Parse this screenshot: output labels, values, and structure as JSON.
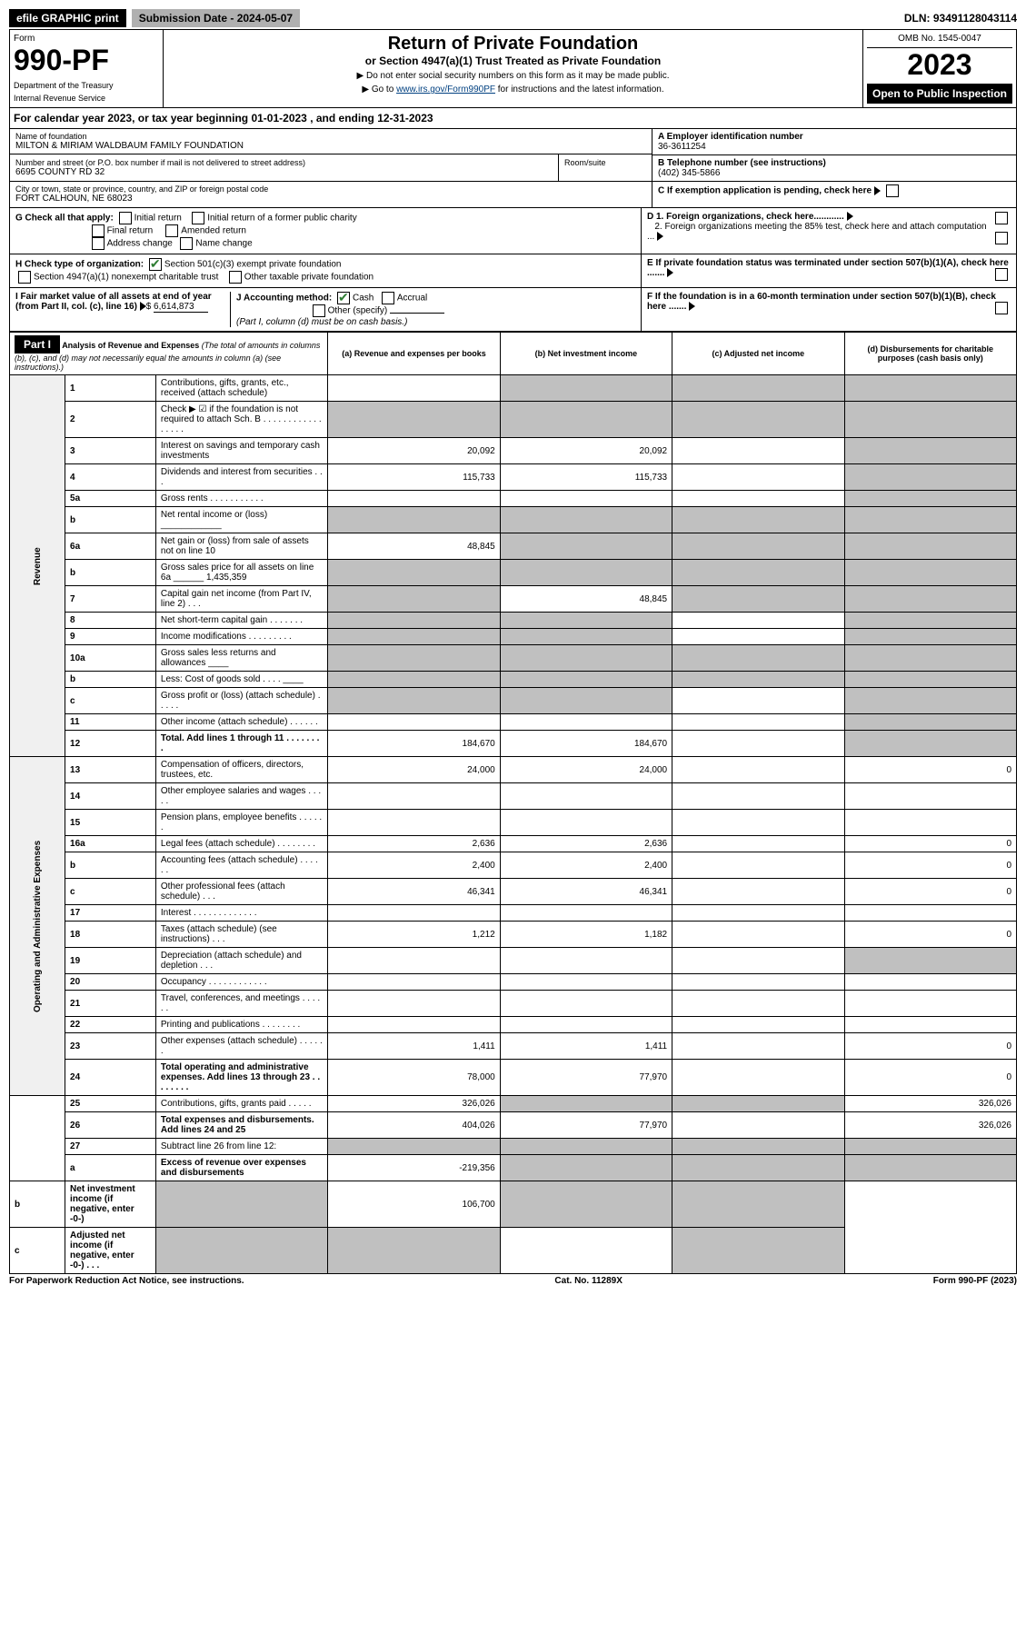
{
  "topbar": {
    "efile": "efile GRAPHIC print",
    "submission": "Submission Date - 2024-05-07",
    "dln": "DLN: 93491128043114"
  },
  "header": {
    "form_word": "Form",
    "form_no": "990-PF",
    "dept": "Department of the Treasury",
    "irs": "Internal Revenue Service",
    "title": "Return of Private Foundation",
    "subtitle": "or Section 4947(a)(1) Trust Treated as Private Foundation",
    "instr1": "▶ Do not enter social security numbers on this form as it may be made public.",
    "instr2_pre": "▶ Go to ",
    "instr2_link": "www.irs.gov/Form990PF",
    "instr2_post": " for instructions and the latest information.",
    "omb": "OMB No. 1545-0047",
    "year": "2023",
    "open": "Open to Public Inspection"
  },
  "calyear": {
    "pre": "For calendar year 2023, or tax year beginning ",
    "begin": "01-01-2023",
    "mid": " , and ending ",
    "end": "12-31-2023"
  },
  "entity": {
    "name_lbl": "Name of foundation",
    "name": "MILTON & MIRIAM WALDBAUM FAMILY FOUNDATION",
    "addr_lbl": "Number and street (or P.O. box number if mail is not delivered to street address)",
    "addr": "6695 COUNTY RD 32",
    "room_lbl": "Room/suite",
    "city_lbl": "City or town, state or province, country, and ZIP or foreign postal code",
    "city": "FORT CALHOUN, NE  68023",
    "a_lbl": "A Employer identification number",
    "a_val": "36-3611254",
    "b_lbl": "B Telephone number (see instructions)",
    "b_val": "(402) 345-5866",
    "c_lbl": "C If exemption application is pending, check here",
    "d1_lbl": "D 1. Foreign organizations, check here............",
    "d2_lbl": "2. Foreign organizations meeting the 85% test, check here and attach computation ...",
    "e_lbl": "E If private foundation status was terminated under section 507(b)(1)(A), check here .......",
    "f_lbl": "F If the foundation is in a 60-month termination under section 507(b)(1)(B), check here .......",
    "g_lbl": "G Check all that apply:",
    "g_initial": "Initial return",
    "g_initial_former": "Initial return of a former public charity",
    "g_final": "Final return",
    "g_amended": "Amended return",
    "g_address": "Address change",
    "g_name": "Name change",
    "h_lbl": "H Check type of organization:",
    "h_501c3": "Section 501(c)(3) exempt private foundation",
    "h_4947": "Section 4947(a)(1) nonexempt charitable trust",
    "h_other": "Other taxable private foundation",
    "i_lbl": "I Fair market value of all assets at end of year (from Part II, col. (c), line 16)",
    "i_val": "6,614,873",
    "j_lbl": "J Accounting method:",
    "j_cash": "Cash",
    "j_accrual": "Accrual",
    "j_other": "Other (specify)",
    "j_note": "(Part I, column (d) must be on cash basis.)"
  },
  "part1": {
    "label": "Part I",
    "title": "Analysis of Revenue and Expenses",
    "title_note": " (The total of amounts in columns (b), (c), and (d) may not necessarily equal the amounts in column (a) (see instructions).)",
    "col_a": "(a) Revenue and expenses per books",
    "col_b": "(b) Net investment income",
    "col_c": "(c) Adjusted net income",
    "col_d": "(d) Disbursements for charitable purposes (cash basis only)",
    "revenue_lbl": "Revenue",
    "expenses_lbl": "Operating and Administrative Expenses"
  },
  "rows": [
    {
      "n": "1",
      "t": "Contributions, gifts, grants, etc., received (attach schedule)",
      "a": "",
      "b": "",
      "c": "",
      "d": "",
      "sb": true,
      "sc": true,
      "sd": true
    },
    {
      "n": "2",
      "t": "Check ▶ ☑ if the foundation is not required to attach Sch. B   . . . . . . . . . . . . . . . . .",
      "a": "",
      "b": "",
      "c": "",
      "d": "",
      "sa": true,
      "sb": true,
      "sc": true,
      "sd": true
    },
    {
      "n": "3",
      "t": "Interest on savings and temporary cash investments",
      "a": "20,092",
      "b": "20,092",
      "c": "",
      "d": "",
      "sd": true
    },
    {
      "n": "4",
      "t": "Dividends and interest from securities   .  .  .",
      "a": "115,733",
      "b": "115,733",
      "c": "",
      "d": "",
      "sd": true
    },
    {
      "n": "5a",
      "t": "Gross rents    .  .  .  .  .  .  .  .  .  .  .",
      "a": "",
      "b": "",
      "c": "",
      "d": "",
      "sd": true
    },
    {
      "n": "b",
      "t": "Net rental income or (loss)  ____________",
      "a": "",
      "b": "",
      "c": "",
      "d": "",
      "sa": true,
      "sb": true,
      "sc": true,
      "sd": true
    },
    {
      "n": "6a",
      "t": "Net gain or (loss) from sale of assets not on line 10",
      "a": "48,845",
      "b": "",
      "c": "",
      "d": "",
      "sb": true,
      "sc": true,
      "sd": true
    },
    {
      "n": "b",
      "t": "Gross sales price for all assets on line 6a ______ 1,435,359",
      "a": "",
      "b": "",
      "c": "",
      "d": "",
      "sa": true,
      "sb": true,
      "sc": true,
      "sd": true
    },
    {
      "n": "7",
      "t": "Capital gain net income (from Part IV, line 2)   .  .  .",
      "a": "",
      "b": "48,845",
      "c": "",
      "d": "",
      "sa": true,
      "sc": true,
      "sd": true
    },
    {
      "n": "8",
      "t": "Net short-term capital gain   .  .  .  .  .  .  .",
      "a": "",
      "b": "",
      "c": "",
      "d": "",
      "sa": true,
      "sb": true,
      "sd": true
    },
    {
      "n": "9",
      "t": "Income modifications  .  .  .  .  .  .  .  .  .",
      "a": "",
      "b": "",
      "c": "",
      "d": "",
      "sa": true,
      "sb": true,
      "sd": true
    },
    {
      "n": "10a",
      "t": "Gross sales less returns and allowances  ____",
      "a": "",
      "b": "",
      "c": "",
      "d": "",
      "sa": true,
      "sb": true,
      "sc": true,
      "sd": true
    },
    {
      "n": "b",
      "t": "Less: Cost of goods sold   .  .  .  .  ____",
      "a": "",
      "b": "",
      "c": "",
      "d": "",
      "sa": true,
      "sb": true,
      "sc": true,
      "sd": true
    },
    {
      "n": "c",
      "t": "Gross profit or (loss) (attach schedule)   .  .  .  .  .",
      "a": "",
      "b": "",
      "c": "",
      "d": "",
      "sa": true,
      "sb": true,
      "sd": true
    },
    {
      "n": "11",
      "t": "Other income (attach schedule)   .  .  .  .  .  .",
      "a": "",
      "b": "",
      "c": "",
      "d": "",
      "sd": true
    },
    {
      "n": "12",
      "t": "Total. Add lines 1 through 11   . . . . . . . .",
      "a": "184,670",
      "b": "184,670",
      "c": "",
      "d": "",
      "bold": true,
      "sd": true
    },
    {
      "n": "13",
      "t": "Compensation of officers, directors, trustees, etc.",
      "a": "24,000",
      "b": "24,000",
      "c": "",
      "d": "0"
    },
    {
      "n": "14",
      "t": "Other employee salaries and wages   .  .  .  .  .",
      "a": "",
      "b": "",
      "c": "",
      "d": ""
    },
    {
      "n": "15",
      "t": "Pension plans, employee benefits  .  .  .  .  .  .",
      "a": "",
      "b": "",
      "c": "",
      "d": ""
    },
    {
      "n": "16a",
      "t": "Legal fees (attach schedule)  .  .  .  .  .  .  .  .",
      "a": "2,636",
      "b": "2,636",
      "c": "",
      "d": "0"
    },
    {
      "n": "b",
      "t": "Accounting fees (attach schedule)  .  .  .  .  .  .",
      "a": "2,400",
      "b": "2,400",
      "c": "",
      "d": "0"
    },
    {
      "n": "c",
      "t": "Other professional fees (attach schedule)   .  .  .",
      "a": "46,341",
      "b": "46,341",
      "c": "",
      "d": "0"
    },
    {
      "n": "17",
      "t": "Interest  .  .  .  .  .  .  .  .  .  .  .  .  .",
      "a": "",
      "b": "",
      "c": "",
      "d": ""
    },
    {
      "n": "18",
      "t": "Taxes (attach schedule) (see instructions)   .  .  .",
      "a": "1,212",
      "b": "1,182",
      "c": "",
      "d": "0"
    },
    {
      "n": "19",
      "t": "Depreciation (attach schedule) and depletion   .  .  .",
      "a": "",
      "b": "",
      "c": "",
      "d": "",
      "sd": true
    },
    {
      "n": "20",
      "t": "Occupancy  .  .  .  .  .  .  .  .  .  .  .  .",
      "a": "",
      "b": "",
      "c": "",
      "d": ""
    },
    {
      "n": "21",
      "t": "Travel, conferences, and meetings  .  .  .  .  .  .",
      "a": "",
      "b": "",
      "c": "",
      "d": ""
    },
    {
      "n": "22",
      "t": "Printing and publications  .  .  .  .  .  .  .  .",
      "a": "",
      "b": "",
      "c": "",
      "d": ""
    },
    {
      "n": "23",
      "t": "Other expenses (attach schedule)  .  .  .  .  .  .",
      "a": "1,411",
      "b": "1,411",
      "c": "",
      "d": "0"
    },
    {
      "n": "24",
      "t": "Total operating and administrative expenses. Add lines 13 through 23   .  .  .  .  .  .  .  .",
      "a": "78,000",
      "b": "77,970",
      "c": "",
      "d": "0",
      "bold": true
    },
    {
      "n": "25",
      "t": "Contributions, gifts, grants paid   .  .  .  .  .",
      "a": "326,026",
      "b": "",
      "c": "",
      "d": "326,026",
      "sb": true,
      "sc": true
    },
    {
      "n": "26",
      "t": "Total expenses and disbursements. Add lines 24 and 25",
      "a": "404,026",
      "b": "77,970",
      "c": "",
      "d": "326,026",
      "bold": true
    },
    {
      "n": "27",
      "t": "Subtract line 26 from line 12:",
      "a": "",
      "b": "",
      "c": "",
      "d": "",
      "sa": true,
      "sb": true,
      "sc": true,
      "sd": true
    },
    {
      "n": "a",
      "t": "Excess of revenue over expenses and disbursements",
      "a": "-219,356",
      "b": "",
      "c": "",
      "d": "",
      "bold": true,
      "sb": true,
      "sc": true,
      "sd": true
    },
    {
      "n": "b",
      "t": "Net investment income (if negative, enter -0-)",
      "a": "",
      "b": "106,700",
      "c": "",
      "d": "",
      "bold": true,
      "sa": true,
      "sc": true,
      "sd": true
    },
    {
      "n": "c",
      "t": "Adjusted net income (if negative, enter -0-)  .  .  .",
      "a": "",
      "b": "",
      "c": "",
      "d": "",
      "bold": true,
      "sa": true,
      "sb": true,
      "sd": true
    }
  ],
  "footer": {
    "left": "For Paperwork Reduction Act Notice, see instructions.",
    "mid": "Cat. No. 11289X",
    "right": "Form 990-PF (2023)"
  }
}
